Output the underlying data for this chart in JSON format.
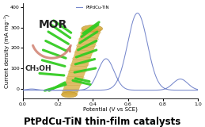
{
  "title": "PtPdCu-TiN thin-film catalysts",
  "xlabel": "Potential (V vs SCE)",
  "ylabel": "Current density (mA mg⁻¹)",
  "legend_label": "PtPdCu-TiN",
  "ylim": [
    -50,
    420
  ],
  "xlim": [
    0.0,
    1.0
  ],
  "yticks": [
    0,
    100,
    200,
    300,
    400
  ],
  "xticks": [
    0.0,
    0.2,
    0.4,
    0.6,
    0.8,
    1.0
  ],
  "curve_color": "#7788cc",
  "bg_color": "#ffffff",
  "mor_text": "MOR",
  "ch3oh_text": "CH₃OH",
  "nanorod_gold": "#d4a838",
  "nanorod_green": "#33cc22",
  "arrow_color": "#d08070",
  "title_fontsize": 8.5,
  "axis_fontsize": 5.0,
  "tick_fontsize": 4.5
}
